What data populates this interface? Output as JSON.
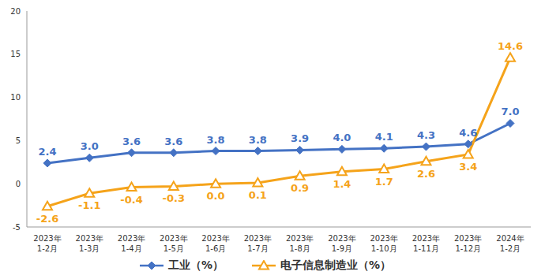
{
  "chart_data": {
    "type": "line",
    "categories": [
      "2023年1-2月",
      "2023年1-3月",
      "2023年1-4月",
      "2023年1-5月",
      "2023年1-6月",
      "2023年1-7月",
      "2023年1-8月",
      "2023年1-9月",
      "2023年1-10月",
      "2023年1-11月",
      "2023年1-12月",
      "2024年1-2月"
    ],
    "series": [
      {
        "name": "工业（%）",
        "color": "#4472C4",
        "marker": "diamond",
        "values": [
          2.4,
          3.0,
          3.6,
          3.6,
          3.8,
          3.8,
          3.9,
          4.0,
          4.1,
          4.3,
          4.6,
          7.0
        ],
        "value_labels": [
          "2.4",
          "3.0",
          "3.6",
          "3.6",
          "3.8",
          "3.8",
          "3.9",
          "4.0",
          "4.1",
          "4.3",
          "4.6",
          "7.0"
        ]
      },
      {
        "name": "电子信息制造业（%）",
        "color": "#F5A31A",
        "marker": "triangle",
        "values": [
          -2.6,
          -1.1,
          -0.4,
          -0.3,
          0.0,
          0.1,
          0.9,
          1.4,
          1.7,
          2.6,
          3.4,
          14.6
        ],
        "value_labels": [
          "-2.6",
          "-1.1",
          "-0.4",
          "-0.3",
          "0.0",
          "0.1",
          "0.9",
          "1.4",
          "1.7",
          "2.6",
          "3.4",
          "14.6"
        ]
      }
    ],
    "ylim": [
      -5,
      20
    ],
    "yticks": [
      -5,
      0,
      5,
      10,
      15,
      20
    ],
    "grid": false,
    "legend": "bottom",
    "data_labels": true
  }
}
